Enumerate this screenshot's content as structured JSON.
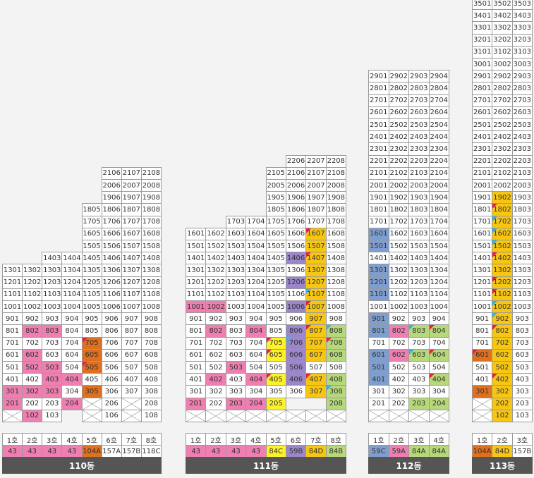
{
  "palette": {
    "pink": "#ee7fb0",
    "orange": "#e0701e",
    "yellow": "#f6c613",
    "brightyellow": "#fdf22a",
    "purple": "#9b86c9",
    "green": "#b6d87a",
    "blue": "#7f9ed0",
    "white": "#ffffff",
    "marker_red": "#e51e4a",
    "marker_cyan": "#32b5e2",
    "marker_green": "#4aa54a"
  },
  "buildings": [
    {
      "name": "110동",
      "units": [
        {
          "ho": "1호",
          "type": "43",
          "color": "pink"
        },
        {
          "ho": "2호",
          "type": "43",
          "color": "pink"
        },
        {
          "ho": "3호",
          "type": "43",
          "color": "pink"
        },
        {
          "ho": "4호",
          "type": "43",
          "color": "pink"
        },
        {
          "ho": "5호",
          "type": "104A",
          "color": "orange"
        },
        {
          "ho": "6호",
          "type": "157A",
          "color": "white"
        },
        {
          "ho": "7호",
          "type": "157B",
          "color": "white"
        },
        {
          "ho": "8호",
          "type": "118C",
          "color": "white"
        }
      ],
      "rows": [
        [
          "",
          "",
          "",
          "",
          "",
          "2106",
          "2107",
          "2108"
        ],
        [
          "",
          "",
          "",
          "",
          "",
          "2006",
          "2007",
          "2008"
        ],
        [
          "",
          "",
          "",
          "",
          "",
          "1906",
          "1907",
          "1908"
        ],
        [
          "",
          "",
          "",
          "",
          "1805",
          "1806",
          "1807",
          "1808"
        ],
        [
          "",
          "",
          "",
          "",
          "1705",
          "1706",
          "1707",
          "1708"
        ],
        [
          "",
          "",
          "",
          "",
          "1605",
          "1606",
          "1607",
          "1608"
        ],
        [
          "",
          "",
          "",
          "",
          "1505",
          "1506",
          "1507",
          "1508"
        ],
        [
          "",
          "",
          "1403",
          "1404",
          "1405",
          "1406",
          "1407",
          "1408"
        ],
        [
          "1301",
          "1302",
          "1303",
          "1304",
          "1305",
          "1306",
          "1307",
          "1308"
        ],
        [
          "1201",
          "1202",
          "1203",
          "1204",
          "1205",
          "1206",
          "1207",
          "1208"
        ],
        [
          "1101",
          "1102",
          "1103",
          "1104",
          "1105",
          "1106",
          "1107",
          "1108"
        ],
        [
          "1001",
          "1002",
          "1003",
          "1004",
          "1005",
          "1006",
          "1007",
          "1008"
        ],
        [
          "901",
          "902",
          "903",
          "904",
          "905",
          "906",
          "907",
          "908"
        ],
        [
          "801",
          "802|pink",
          "803|pink",
          "804",
          "805",
          "806",
          "807",
          "808"
        ],
        [
          "701",
          "702",
          "703",
          "704",
          "705|orange|r",
          "706",
          "707",
          "708"
        ],
        [
          "601",
          "602|pink",
          "603",
          "604",
          "605|orange",
          "606",
          "607",
          "608"
        ],
        [
          "501",
          "502|pink",
          "503|pink",
          "504",
          "505|orange|r",
          "506",
          "507",
          "508"
        ],
        [
          "401",
          "402",
          "403|pink",
          "404|pink",
          "405",
          "406",
          "407",
          "408"
        ],
        [
          "301|pink",
          "302|pink",
          "303|pink",
          "304",
          "305|orange",
          "306",
          "307",
          "308"
        ],
        [
          "201|pink",
          "202",
          "203",
          "204|pink",
          "X",
          "206",
          "X",
          "208"
        ],
        [
          "X",
          "102|pink",
          "103",
          "",
          "X",
          "106",
          "X",
          "108"
        ]
      ]
    },
    {
      "name": "111동",
      "units": [
        {
          "ho": "1호",
          "type": "43",
          "color": "pink"
        },
        {
          "ho": "2호",
          "type": "43",
          "color": "pink"
        },
        {
          "ho": "3호",
          "type": "43",
          "color": "pink"
        },
        {
          "ho": "4호",
          "type": "43",
          "color": "pink"
        },
        {
          "ho": "5호",
          "type": "84C",
          "color": "brightyellow"
        },
        {
          "ho": "6호",
          "type": "59B",
          "color": "purple"
        },
        {
          "ho": "7호",
          "type": "84D",
          "color": "yellow"
        },
        {
          "ho": "8호",
          "type": "84B",
          "color": "green"
        }
      ],
      "rows": [
        [
          "",
          "",
          "",
          "",
          "",
          "2206",
          "2207",
          "2208"
        ],
        [
          "",
          "",
          "",
          "",
          "2105",
          "2106",
          "2107",
          "2108"
        ],
        [
          "",
          "",
          "",
          "",
          "2005",
          "2006",
          "2007",
          "2008"
        ],
        [
          "",
          "",
          "",
          "",
          "1905",
          "1906",
          "1907",
          "1908"
        ],
        [
          "",
          "",
          "",
          "",
          "1805",
          "1806",
          "1807",
          "1808"
        ],
        [
          "",
          "",
          "1703",
          "1704",
          "1705",
          "1706",
          "1707",
          "1708"
        ],
        [
          "1601",
          "1602",
          "1603",
          "1604",
          "1605",
          "1606",
          "1607|yellow|r",
          "1608"
        ],
        [
          "1501",
          "1502",
          "1503",
          "1504",
          "1505",
          "1506",
          "1507|yellow",
          "1508"
        ],
        [
          "1401",
          "1402",
          "1403",
          "1404",
          "1405",
          "1406|purple",
          "1407|yellow|r",
          "1408"
        ],
        [
          "1301",
          "1302",
          "1303",
          "1304",
          "1305",
          "1306",
          "1307|yellow",
          "1308"
        ],
        [
          "1201",
          "1202",
          "1203",
          "1204",
          "1205",
          "1206|purple",
          "1207|yellow",
          "1208"
        ],
        [
          "1101",
          "1102",
          "1103",
          "1104",
          "1105",
          "1106",
          "1107|yellow|c",
          "1108"
        ],
        [
          "1001|pink",
          "1002|pink",
          "1003",
          "1004",
          "1005",
          "1006|purple",
          "1007|yellow|r",
          "1008"
        ],
        [
          "901",
          "902",
          "903",
          "904",
          "905",
          "906",
          "907|yellow",
          "908"
        ],
        [
          "801",
          "802|pink",
          "803",
          "804|pink",
          "805",
          "806|purple",
          "807|yellow|r",
          "808|green|c"
        ],
        [
          "701",
          "702",
          "703",
          "704",
          "705|brightyellow|r",
          "706|purple|c",
          "707|yellow",
          "708|green|r"
        ],
        [
          "601",
          "602",
          "603",
          "604",
          "605|brightyellow|r",
          "606|purple",
          "607|yellow",
          "608|green"
        ],
        [
          "501",
          "502",
          "503|pink",
          "504",
          "505",
          "506|purple",
          "507",
          "508"
        ],
        [
          "401",
          "402|pink",
          "403",
          "404|pink",
          "405|brightyellow|r",
          "406|purple",
          "407|yellow|r",
          "408|green"
        ],
        [
          "301",
          "302",
          "303",
          "304",
          "305",
          "306",
          "307|yellow",
          "308|green|c"
        ],
        [
          "201|pink",
          "202",
          "203|pink",
          "204|pink",
          "205|brightyellow",
          "",
          "",
          "208|green"
        ],
        [
          "X",
          "X",
          "X",
          "X",
          "X",
          "X",
          "X",
          "X"
        ]
      ]
    },
    {
      "name": "112동",
      "units": [
        {
          "ho": "1호",
          "type": "59C",
          "color": "blue"
        },
        {
          "ho": "2호",
          "type": "59A",
          "color": "pink"
        },
        {
          "ho": "3호",
          "type": "84A",
          "color": "green"
        },
        {
          "ho": "4호",
          "type": "84A",
          "color": "green"
        }
      ],
      "rows": [
        [
          "2901",
          "2902",
          "2903",
          "2904"
        ],
        [
          "2801",
          "2802",
          "2803",
          "2804"
        ],
        [
          "2701",
          "2702",
          "2703",
          "2704"
        ],
        [
          "2601",
          "2602",
          "2603",
          "2604"
        ],
        [
          "2501",
          "2502",
          "2503",
          "2504"
        ],
        [
          "2401",
          "2402",
          "2403",
          "2404"
        ],
        [
          "2301",
          "2302",
          "2303",
          "2304"
        ],
        [
          "2201",
          "2202",
          "2203",
          "2204"
        ],
        [
          "2101",
          "2102",
          "2103",
          "2104"
        ],
        [
          "2001",
          "2002",
          "2003",
          "2004"
        ],
        [
          "1901",
          "1902",
          "1903",
          "1904"
        ],
        [
          "1801",
          "1802",
          "1803",
          "1804"
        ],
        [
          "1701",
          "1702",
          "1703",
          "1704"
        ],
        [
          "1601|blue",
          "1602",
          "1603",
          "1604"
        ],
        [
          "1501|blue",
          "1502",
          "1503",
          "1504"
        ],
        [
          "1401",
          "1402",
          "1403",
          "1404"
        ],
        [
          "1301|blue",
          "1302",
          "1303",
          "1304"
        ],
        [
          "1201|blue",
          "1202",
          "1203",
          "1204"
        ],
        [
          "1101|blue",
          "1102",
          "1103",
          "1104"
        ],
        [
          "1001",
          "1002",
          "1003",
          "1004"
        ],
        [
          "901|blue",
          "902",
          "903",
          "904"
        ],
        [
          "801|blue",
          "802|pink",
          "803|green|c",
          "804|green|r"
        ],
        [
          "701",
          "702",
          "703",
          "704"
        ],
        [
          "601|blue",
          "602|pink",
          "603|green|c",
          "604|green|r"
        ],
        [
          "501|blue",
          "502",
          "503",
          "504"
        ],
        [
          "401|blue",
          "402",
          "403",
          "404|green|r"
        ],
        [
          "301",
          "302",
          "303",
          "304"
        ],
        [
          "201",
          "202",
          "203|green",
          "204|green"
        ],
        [
          "X",
          "X",
          "X",
          "X"
        ]
      ]
    },
    {
      "name": "113동",
      "units": [
        {
          "ho": "1호",
          "type": "104A",
          "color": "orange"
        },
        {
          "ho": "2호",
          "type": "84D",
          "color": "yellow"
        },
        {
          "ho": "3호",
          "type": "157B",
          "color": "white"
        }
      ],
      "rows": [
        [
          "3501",
          "3502",
          "3503"
        ],
        [
          "3401",
          "3402",
          "3403"
        ],
        [
          "3301",
          "3302",
          "3303"
        ],
        [
          "3201",
          "3202",
          "3203"
        ],
        [
          "3101",
          "3102",
          "3103"
        ],
        [
          "3001",
          "3002",
          "3003"
        ],
        [
          "2901",
          "2902",
          "2903"
        ],
        [
          "2801",
          "2802",
          "2803"
        ],
        [
          "2701",
          "2702",
          "2703"
        ],
        [
          "2601",
          "2602",
          "2603"
        ],
        [
          "2501",
          "2502",
          "2503"
        ],
        [
          "2401",
          "2402",
          "2403"
        ],
        [
          "2301",
          "2302",
          "2303"
        ],
        [
          "2201",
          "2202",
          "2203"
        ],
        [
          "2101",
          "2102",
          "2103"
        ],
        [
          "2001",
          "2002",
          "2003"
        ],
        [
          "1901",
          "1902|yellow",
          "1903"
        ],
        [
          "1801",
          "1802|yellow|r",
          "1803"
        ],
        [
          "1701",
          "1702|yellow|c",
          "1703"
        ],
        [
          "1601",
          "1602|yellow|c",
          "1603"
        ],
        [
          "1501",
          "1502|yellow|c",
          "1503"
        ],
        [
          "1401",
          "1402|yellow|r",
          "1403"
        ],
        [
          "1301",
          "1302|yellow",
          "1303"
        ],
        [
          "1201",
          "1202|yellow|r",
          "1203"
        ],
        [
          "1101",
          "1102|yellow|r",
          "1103"
        ],
        [
          "1001",
          "1002|yellow|c",
          "1003"
        ],
        [
          "901",
          "902|yellow|c",
          "903"
        ],
        [
          "801",
          "802|yellow|r",
          "803"
        ],
        [
          "701",
          "702|yellow",
          "703"
        ],
        [
          "601|orange|r",
          "602|yellow",
          "603"
        ],
        [
          "501",
          "502|yellow",
          "503"
        ],
        [
          "401",
          "402|yellow|r",
          "403"
        ],
        [
          "301|orange",
          "302|yellow",
          "303"
        ],
        [
          "X",
          "202|yellow",
          "203"
        ],
        [
          "X",
          "102|yellow",
          "103"
        ]
      ]
    }
  ]
}
